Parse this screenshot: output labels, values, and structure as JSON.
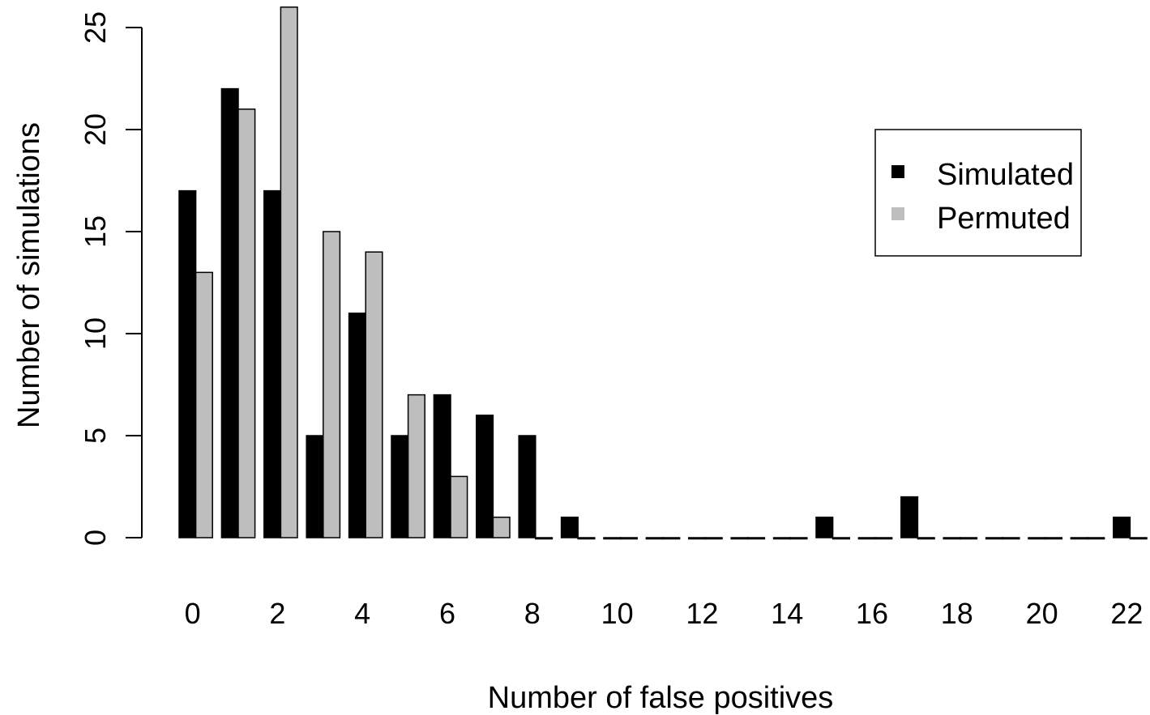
{
  "chart_data": {
    "type": "bar",
    "title": "",
    "xlabel": "Number of false positives",
    "ylabel": "Number of simulations",
    "categories": [
      "0",
      "1",
      "2",
      "3",
      "4",
      "5",
      "6",
      "7",
      "8",
      "9",
      "10",
      "11",
      "12",
      "13",
      "14",
      "15",
      "16",
      "17",
      "18",
      "19",
      "20",
      "21",
      "22"
    ],
    "x_tick_labels": [
      "0",
      "2",
      "4",
      "6",
      "8",
      "10",
      "12",
      "14",
      "16",
      "18",
      "20",
      "22"
    ],
    "y_ticks": [
      0,
      5,
      10,
      15,
      20,
      25
    ],
    "y_tick_labels": [
      "0",
      "5",
      "10",
      "15",
      "20",
      "25"
    ],
    "ylim": [
      0,
      26
    ],
    "grid": false,
    "legend_position": "right",
    "series": [
      {
        "name": "Simulated",
        "color": "#000000",
        "values": [
          17,
          22,
          17,
          5,
          11,
          5,
          7,
          6,
          5,
          1,
          0,
          0,
          0,
          0,
          0,
          1,
          0,
          2,
          0,
          0,
          0,
          0,
          1
        ]
      },
      {
        "name": "Permuted",
        "color": "#bebebe",
        "values": [
          13,
          21,
          26,
          15,
          14,
          7,
          3,
          1,
          0,
          0,
          0,
          0,
          0,
          0,
          0,
          0,
          0,
          0,
          0,
          0,
          0,
          0,
          0
        ]
      }
    ]
  }
}
